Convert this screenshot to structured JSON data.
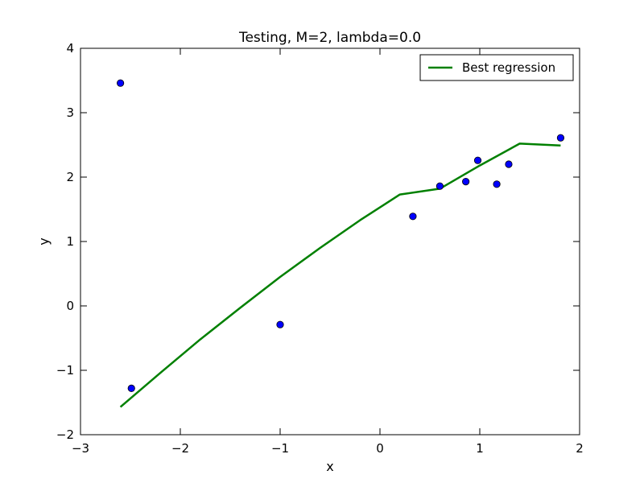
{
  "chart_data": {
    "type": "scatter",
    "title": "Testing, M=2, lambda=0.0",
    "xlabel": "x",
    "ylabel": "y",
    "xlim": [
      -3,
      2
    ],
    "ylim": [
      -2,
      4
    ],
    "xticks": [
      -3,
      -2,
      -1,
      0,
      1,
      2
    ],
    "yticks": [
      -2,
      -1,
      0,
      1,
      2,
      3,
      4
    ],
    "xtick_labels": [
      "−3",
      "−2",
      "−1",
      "0",
      "1",
      "2"
    ],
    "ytick_labels": [
      "−2",
      "−1",
      "0",
      "1",
      "2",
      "3",
      "4"
    ],
    "grid": false,
    "legend_position": "top-right",
    "points": {
      "color": "#0000ff",
      "x": [
        -2.6,
        -2.49,
        -1.0,
        0.33,
        0.6,
        0.86,
        0.98,
        1.17,
        1.29,
        1.81
      ],
      "y": [
        3.46,
        -1.28,
        -0.29,
        1.39,
        1.86,
        1.93,
        2.26,
        1.89,
        2.2,
        2.61
      ]
    },
    "series": [
      {
        "name": "Best regression",
        "color": "#008000",
        "x": [
          -2.6,
          -2.2,
          -1.8,
          -1.4,
          -1.0,
          -0.6,
          -0.2,
          0.2,
          0.6,
          1.0,
          1.4,
          1.81
        ],
        "y": [
          -1.57,
          -1.04,
          -0.52,
          -0.03,
          0.45,
          0.9,
          1.33,
          1.73,
          1.82,
          2.18,
          2.52,
          2.49
        ]
      }
    ]
  }
}
